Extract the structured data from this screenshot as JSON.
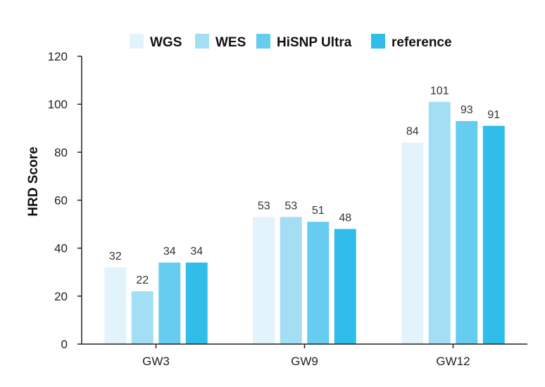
{
  "chart_data": {
    "type": "bar",
    "title": "",
    "xlabel": "",
    "ylabel": "HRD Score",
    "ylim": [
      0,
      120
    ],
    "yticks": [
      0,
      20,
      40,
      60,
      80,
      100,
      120
    ],
    "categories": [
      "GW3",
      "GW9",
      "GW12"
    ],
    "legend_position": "top-center",
    "grid": false,
    "series": [
      {
        "name": "WGS",
        "color": "#e3f3fb",
        "values": [
          32,
          53,
          84
        ]
      },
      {
        "name": "WES",
        "color": "#a3def5",
        "values": [
          22,
          53,
          101
        ]
      },
      {
        "name": "HiSNP Ultra",
        "color": "#66cdf0",
        "values": [
          34,
          51,
          93
        ]
      },
      {
        "name": "reference",
        "color": "#30bde9",
        "values": [
          34,
          48,
          91
        ]
      }
    ]
  }
}
